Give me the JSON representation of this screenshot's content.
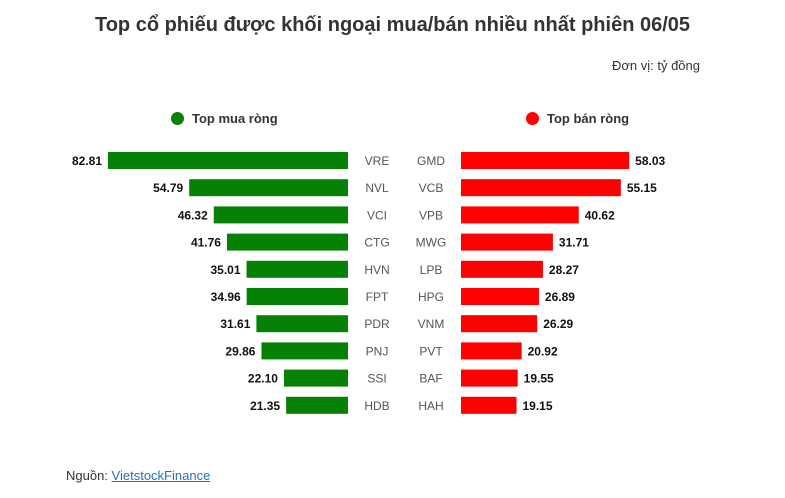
{
  "title": "Top cổ phiếu được khối ngoại mua/bán nhiều nhất phiên 06/05",
  "unit_label": "Đơn vị: tỷ đồng",
  "source": {
    "prefix": "Nguồn: ",
    "link_text": "VietstockFinance"
  },
  "colors": {
    "buy": "#058205",
    "sell": "#ff0000"
  },
  "chart_data": [
    {
      "type": "bar",
      "orientation": "horizontal",
      "direction": "left",
      "legend": "Top mua ròng",
      "categories": [
        "VRE",
        "NVL",
        "VCI",
        "CTG",
        "HVN",
        "FPT",
        "PDR",
        "PNJ",
        "SSI",
        "HDB"
      ],
      "values": [
        82.81,
        54.79,
        46.32,
        41.76,
        35.01,
        34.96,
        31.61,
        29.86,
        22.1,
        21.35
      ],
      "value_labels": [
        "82.81",
        "54.79",
        "46.32",
        "41.76",
        "35.01",
        "34.96",
        "31.61",
        "29.86",
        "22.10",
        "21.35"
      ],
      "xlim": [
        0,
        82.81
      ]
    },
    {
      "type": "bar",
      "orientation": "horizontal",
      "direction": "right",
      "legend": "Top bán ròng",
      "categories": [
        "GMD",
        "VCB",
        "VPB",
        "MWG",
        "LPB",
        "HPG",
        "VNM",
        "PVT",
        "BAF",
        "HAH"
      ],
      "values": [
        58.03,
        55.15,
        40.62,
        31.71,
        28.27,
        26.89,
        26.29,
        20.92,
        19.55,
        19.15
      ],
      "value_labels": [
        "58.03",
        "55.15",
        "40.62",
        "31.71",
        "28.27",
        "26.89",
        "26.29",
        "20.92",
        "19.55",
        "19.15"
      ],
      "xlim": [
        0,
        82.81
      ]
    }
  ]
}
